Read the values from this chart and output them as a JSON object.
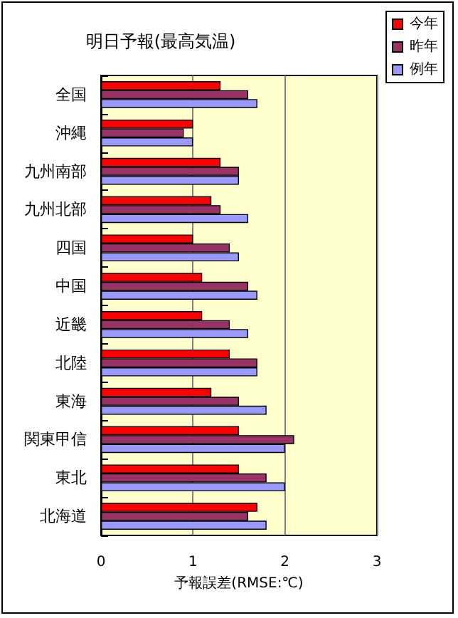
{
  "chart_data": {
    "type": "bar",
    "orientation": "horizontal",
    "title": "明日予報(最高気温)",
    "xlabel": "予報誤差(RMSE:℃)",
    "categories": [
      "全国",
      "沖縄",
      "九州南部",
      "九州北部",
      "四国",
      "中国",
      "近畿",
      "北陸",
      "東海",
      "関東甲信",
      "東北",
      "北海道"
    ],
    "series": [
      {
        "name": "今年",
        "color": "#ff0000",
        "values": [
          1.3,
          1.0,
          1.3,
          1.2,
          1.0,
          1.1,
          1.1,
          1.4,
          1.2,
          1.5,
          1.5,
          1.7
        ]
      },
      {
        "name": "昨年",
        "color": "#993366",
        "values": [
          1.6,
          0.9,
          1.5,
          1.3,
          1.4,
          1.6,
          1.4,
          1.7,
          1.5,
          2.1,
          1.8,
          1.6
        ]
      },
      {
        "name": "例年",
        "color": "#9999ff",
        "values": [
          1.7,
          1.0,
          1.5,
          1.6,
          1.5,
          1.7,
          1.6,
          1.7,
          1.8,
          2.0,
          2.0,
          1.8
        ]
      }
    ],
    "xlim": [
      0,
      3
    ],
    "xticks": [
      0,
      1,
      2,
      3
    ],
    "grid": "x",
    "legend": "top right"
  }
}
